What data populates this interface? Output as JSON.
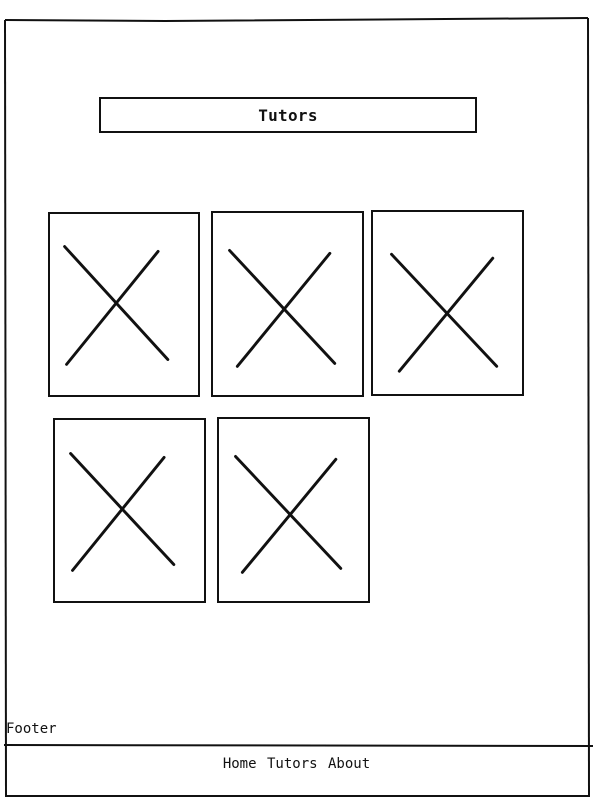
{
  "header": {
    "title": "Tutors"
  },
  "tutor_cards": [
    {
      "image_icon": "image-placeholder-icon"
    },
    {
      "image_icon": "image-placeholder-icon"
    },
    {
      "image_icon": "image-placeholder-icon"
    },
    {
      "image_icon": "image-placeholder-icon"
    },
    {
      "image_icon": "image-placeholder-icon"
    }
  ],
  "footer": {
    "label": "Footer",
    "nav": {
      "home": "Home",
      "tutors": "Tutors",
      "about": "About"
    }
  },
  "colors": {
    "line": "#111111",
    "background": "#ffffff"
  }
}
